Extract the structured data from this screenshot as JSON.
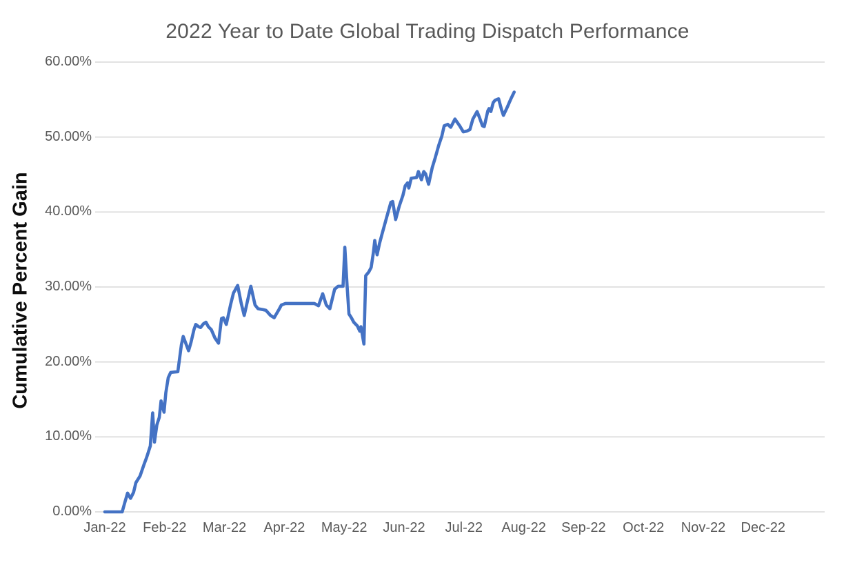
{
  "chart": {
    "title": "2022 Year to Date Global Trading Dispatch Performance",
    "y_axis_title": "Cumulative Percent Gain",
    "colors": {
      "line": "#4472C4",
      "gridline": "#D9D9D9",
      "title_text": "#595959",
      "tick_text": "#595959",
      "axis_title_text": "#0D0D0D",
      "background": "#FFFFFF"
    }
  },
  "chart_data": {
    "type": "line",
    "title": "2022 Year to Date Global Trading Dispatch Performance",
    "xlabel": "",
    "ylabel": "Cumulative Percent Gain",
    "legend": "none",
    "grid": "horizontal",
    "ylim": [
      0,
      60
    ],
    "xlim_months": [
      0,
      12
    ],
    "y_ticks": [
      {
        "value": 0,
        "label": "0.00%"
      },
      {
        "value": 10,
        "label": "10.00%"
      },
      {
        "value": 20,
        "label": "20.00%"
      },
      {
        "value": 30,
        "label": "30.00%"
      },
      {
        "value": 40,
        "label": "40.00%"
      },
      {
        "value": 50,
        "label": "50.00%"
      },
      {
        "value": 60,
        "label": "60.00%"
      }
    ],
    "x_tick_labels": [
      "Jan-22",
      "Feb-22",
      "Mar-22",
      "Apr-22",
      "May-22",
      "Jun-22",
      "Jul-22",
      "Aug-22",
      "Sep-22",
      "Oct-22",
      "Nov-22",
      "Dec-22"
    ],
    "series": [
      {
        "name": "Cumulative Percent Gain",
        "x_months_from_jan2022": [
          0.0,
          0.29,
          0.34,
          0.38,
          0.43,
          0.48,
          0.52,
          0.59,
          0.65,
          0.7,
          0.76,
          0.8,
          0.83,
          0.87,
          0.91,
          0.94,
          0.99,
          1.02,
          1.06,
          1.1,
          1.22,
          1.28,
          1.31,
          1.4,
          1.44,
          1.49,
          1.52,
          1.57,
          1.6,
          1.65,
          1.69,
          1.73,
          1.78,
          1.84,
          1.9,
          1.95,
          1.98,
          2.03,
          2.1,
          2.15,
          2.22,
          2.28,
          2.33,
          2.38,
          2.44,
          2.51,
          2.56,
          2.63,
          2.69,
          2.77,
          2.83,
          2.91,
          2.95,
          3.02,
          3.5,
          3.57,
          3.64,
          3.7,
          3.76,
          3.84,
          3.9,
          3.98,
          4.01,
          4.05,
          4.08,
          4.12,
          4.16,
          4.22,
          4.26,
          4.28,
          4.33,
          4.36,
          4.41,
          4.45,
          4.49,
          4.51,
          4.55,
          4.59,
          4.63,
          4.71,
          4.78,
          4.81,
          4.86,
          4.92,
          4.98,
          5.02,
          5.06,
          5.08,
          5.12,
          5.21,
          5.24,
          5.29,
          5.33,
          5.36,
          5.41,
          5.47,
          5.52,
          5.58,
          5.63,
          5.67,
          5.73,
          5.78,
          5.85,
          5.93,
          5.99,
          6.05,
          6.1,
          6.15,
          6.22,
          6.26,
          6.31,
          6.34,
          6.4,
          6.42,
          6.45,
          6.49,
          6.52,
          6.58,
          6.63,
          6.66,
          6.72,
          6.78,
          6.84
        ],
        "y_percent": [
          0.0,
          0.0,
          1.4,
          2.5,
          1.8,
          2.6,
          3.9,
          4.8,
          6.2,
          7.3,
          8.8,
          13.2,
          9.3,
          11.6,
          12.6,
          14.8,
          13.3,
          15.9,
          17.9,
          18.6,
          18.7,
          22.3,
          23.4,
          21.5,
          22.6,
          24.3,
          25.0,
          24.7,
          24.6,
          25.1,
          25.3,
          24.7,
          24.3,
          23.2,
          22.5,
          25.8,
          25.9,
          25.0,
          27.6,
          29.2,
          30.2,
          27.8,
          26.2,
          28.0,
          30.1,
          27.6,
          27.1,
          27.0,
          26.9,
          26.2,
          25.9,
          27.0,
          27.6,
          27.8,
          27.8,
          27.5,
          29.1,
          27.6,
          27.1,
          29.7,
          30.1,
          30.1,
          35.3,
          30.0,
          26.4,
          25.9,
          25.3,
          24.8,
          24.1,
          24.7,
          22.4,
          31.5,
          32.0,
          32.6,
          34.7,
          36.2,
          34.3,
          35.8,
          37.0,
          39.3,
          41.3,
          41.4,
          39.0,
          40.8,
          42.2,
          43.5,
          43.9,
          43.2,
          44.5,
          44.6,
          45.4,
          44.3,
          45.4,
          45.1,
          43.7,
          45.9,
          47.2,
          48.9,
          50.1,
          51.5,
          51.7,
          51.3,
          52.4,
          51.5,
          50.7,
          50.8,
          51.0,
          52.4,
          53.4,
          52.6,
          51.5,
          51.4,
          53.5,
          53.8,
          53.4,
          54.6,
          54.9,
          55.1,
          53.6,
          52.9,
          53.9,
          55.0,
          56.0
        ]
      }
    ]
  }
}
